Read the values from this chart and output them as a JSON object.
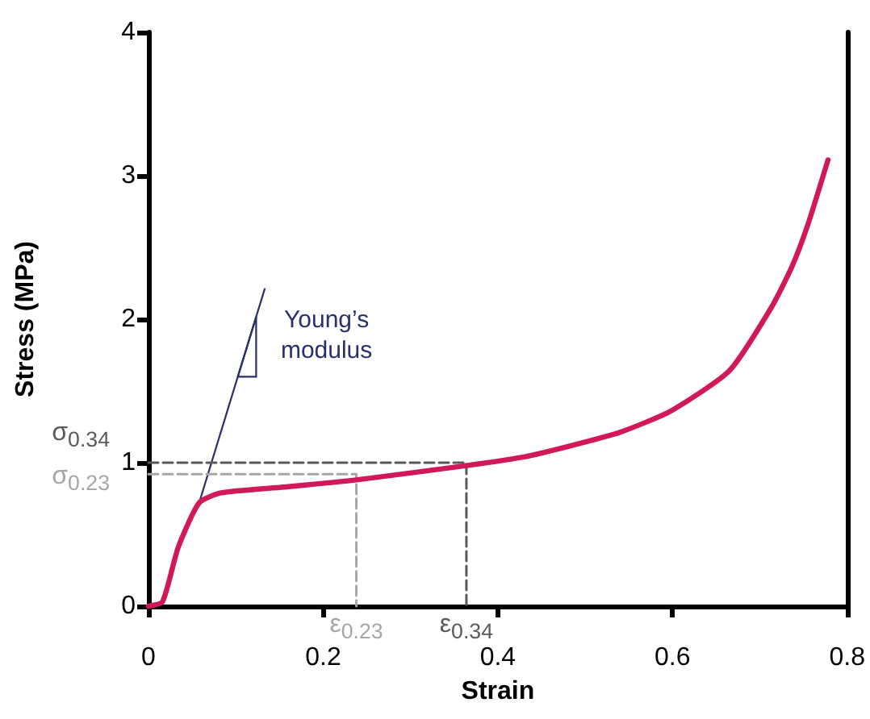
{
  "chart_data": {
    "type": "line",
    "xlabel": "Strain",
    "ylabel": "Stress (MPa)",
    "xlim": [
      0,
      0.8
    ],
    "xticks": [
      0,
      0.2,
      0.4,
      0.6,
      0.8
    ],
    "ylim": [
      0,
      4
    ],
    "yticks": [
      0,
      1,
      2,
      3,
      4
    ],
    "grid": false,
    "marker": "none",
    "series": [
      {
        "color": "#d0185a",
        "x": [
          0,
          0.016,
          0.034,
          0.058,
          0.083,
          0.155,
          0.238,
          0.364,
          0.43,
          0.485,
          0.539,
          0.598,
          0.665,
          0.713,
          0.737,
          0.755,
          0.778
        ],
        "values": [
          0,
          0.03,
          0.41,
          0.72,
          0.79,
          0.83,
          0.88,
          0.98,
          1.04,
          1.12,
          1.21,
          1.36,
          1.64,
          2.08,
          2.37,
          2.66,
          3.11
        ]
      },
      {
        "color": "#2b2f6b",
        "x": [
          0.058,
          0.133
        ],
        "values": [
          0.72,
          2.21
        ]
      },
      {
        "color": "#595959",
        "line_style": "dashed",
        "x": [
          0,
          0.364,
          0.364
        ],
        "values": [
          1.0,
          1.0,
          0
        ]
      },
      {
        "color": "#a6a6a6",
        "line_style": "dashed",
        "x": [
          0,
          0.238,
          0.238
        ],
        "values": [
          0.92,
          0.92,
          0
        ]
      }
    ],
    "annotations": [
      "Young’s\nmodulus",
      {
        "text": "σ$_{0.34}$",
        "x": 0,
        "y": 1.0
      },
      {
        "text": "σ$_{0.23}$",
        "x": 0,
        "y": 0.92
      },
      {
        "text": "ε$_{0.23}$",
        "x": 0.238,
        "y": 0
      },
      {
        "text": "ε$_{0.34}$",
        "x": 0.364,
        "y": 0
      }
    ]
  }
}
